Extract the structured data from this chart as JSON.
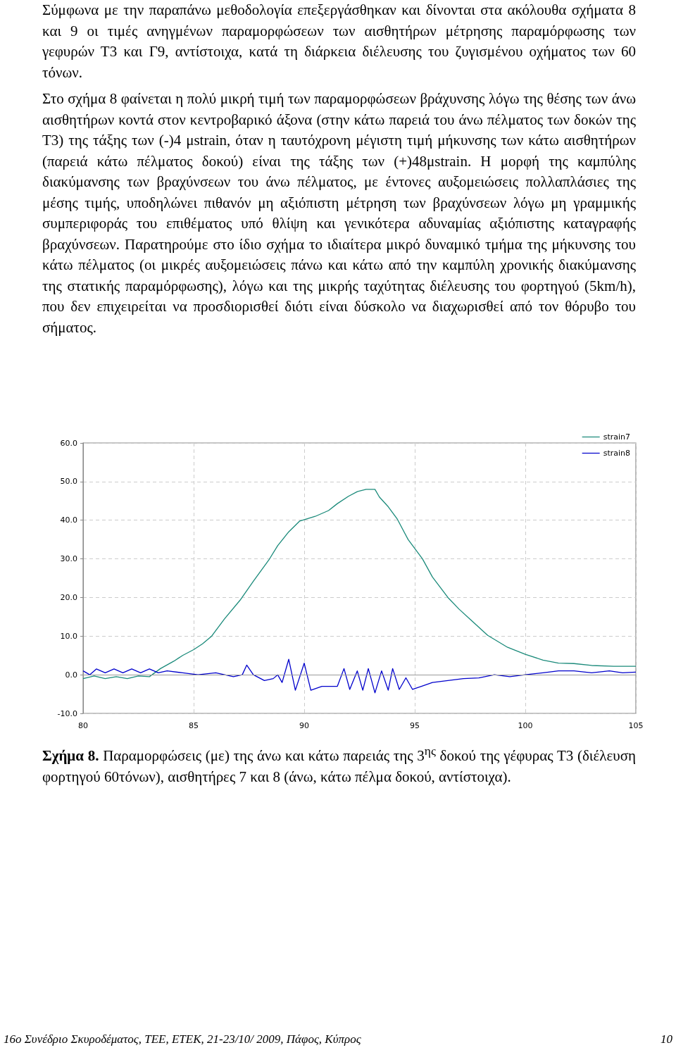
{
  "chart_data": {
    "type": "line",
    "annotations": [
      "Σύμφωνα με την παραπάνω μεθοδολογία επεξεργάσθηκαν και δίνονται στα ακόλουθα σχήματα 8 και 9 οι τιμές ανηγμένων παραμορφώσεων των αισθητήρων μέτρησης παραμόρφωσης των γεφυρών Τ3 και Γ9, αντίστοιχα, κατά τη διάρκεια διέλευσης του ζυγισμένου οχήματος των 60 τόνων.",
      "Στο σχήμα 8 φαίνεται η πολύ μικρή τιμή των παραμορφώσεων βράχυνσης λόγω της θέσης των άνω αισθητήρων κοντά στον κεντροβαρικό άξονα (στην κάτω παρειά του άνω πέλματος των δοκών της Τ3) της τάξης των (-)4 μstrain, όταν η ταυτόχρονη μέγιστη τιμή μήκυνσης των κάτω αισθητήρων (παρειά κάτω πέλματος δοκού) είναι της τάξης των (+)48μstrain. Η μορφή της καμπύλης διακύμανσης των βραχύνσεων του άνω πέλματος, με έντονες αυξομειώσεις πολλαπλάσιες της μέσης τιμής, υποδηλώνει πιθανόν μη αξιόπιστη μέτρηση των βραχύνσεων λόγω μη γραμμικής συμπεριφοράς του επιθέματος υπό θλίψη και γενικότερα αδυναμίας αξιόπιστης καταγραφής βραχύνσεων. Παρατηρούμε στο ίδιο σχήμα το ιδιαίτερα μικρό δυναμικό τμήμα της μήκυνσης του κάτω πέλματος (οι μικρές αυξομειώσεις πάνω και κάτω από την καμπύλη χρονικής διακύμανσης της στατικής παραμόρφωσης), λόγω και της μικρής ταχύτητας διέλευσης του φορτηγού (5km/h), που δεν επιχειρείται να προσδιορισθεί διότι είναι δύσκολο να διαχωρισθεί από τον θόρυβο του σήματος.",
      "Σχήμα 8.",
      "Παραμορφώσεις (με) της άνω και κάτω παρειάς της 3$^{ης}$ δοκού της γέφυρας Τ3 (διέλευση φορτηγού 60τόνων), αισθητήρες 7 και 8 (άνω, κάτω πέλμα δοκού, αντίστοιχα).",
      "16ο Συνέδριο Σκυροδέματος, ΤΕΕ, ΕΤΕΚ, 21-23/10/ 2009, Πάφος, Κύπρος",
      "10"
    ],
    "xlim": [
      80,
      105
    ],
    "xticks": [
      80,
      85,
      90,
      95,
      100,
      105
    ],
    "ylim": [
      -10,
      60
    ],
    "yticks": [
      {
        "value": -10,
        "label": "-10.0"
      },
      {
        "value": 0,
        "label": "0.0"
      },
      {
        "value": 10,
        "label": "10.0"
      },
      {
        "value": 20,
        "label": "20.0"
      },
      {
        "value": 30,
        "label": "30.0"
      },
      {
        "value": 40,
        "label": "40.0"
      },
      {
        "value": 50,
        "label": "50.0"
      },
      {
        "value": 60,
        "label": "60.0"
      }
    ],
    "grid": true,
    "legend": "top right",
    "marker": "none",
    "line_style": "solid",
    "ref_lines": [
      {
        "axis": "y",
        "value": 0,
        "color": "#999999"
      }
    ],
    "series": [
      {
        "name": "strain7",
        "color": "#1a8a7a",
        "x": [
          80,
          80.5,
          81,
          81.5,
          82,
          82.5,
          83,
          83.5,
          84.1,
          84.5,
          85,
          85.4,
          85.8,
          86.4,
          87.1,
          87.7,
          88.4,
          88.8,
          89.3,
          89.8,
          90.5,
          91.1,
          91.5,
          92,
          92.4,
          92.8,
          93.2,
          93.4,
          93.8,
          94.2,
          94.7,
          95.35,
          95.8,
          96.5,
          97,
          97.5,
          98.3,
          99.2,
          100,
          100.8,
          101.5,
          102.2,
          103,
          104,
          105
        ],
        "values": [
          -1,
          -0.3,
          -1,
          -0.5,
          -1,
          -0.3,
          -0.5,
          1.6,
          3.5,
          5,
          6.5,
          8,
          9.9,
          14.5,
          19.3,
          24.2,
          29.7,
          33.4,
          37,
          39.8,
          41,
          42.5,
          44.3,
          46.2,
          47.4,
          48,
          48,
          46,
          43.5,
          40.4,
          35,
          30,
          25.3,
          20,
          17,
          14.4,
          10.2,
          7.1,
          5.3,
          3.8,
          3,
          2.9,
          2.4,
          2.2,
          2.2
        ]
      },
      {
        "name": "strain8",
        "color": "#0000cc",
        "x": [
          80,
          80.3,
          80.6,
          81,
          81.4,
          81.8,
          82.2,
          82.6,
          83,
          83.4,
          83.8,
          84.5,
          85.2,
          86,
          86.8,
          87.2,
          87.4,
          87.7,
          88.2,
          88.6,
          88.8,
          89,
          89.3,
          89.6,
          90,
          90.3,
          90.8,
          91.5,
          91.8,
          92.06,
          92.4,
          92.65,
          92.9,
          93.2,
          93.5,
          93.8,
          94,
          94.3,
          94.6,
          94.9,
          95.3,
          95.8,
          96.5,
          97.2,
          97.9,
          98.6,
          99.3,
          100,
          100.8,
          101.5,
          102.2,
          103,
          103.8,
          104.4,
          105
        ],
        "values": [
          1,
          0,
          1.5,
          0.5,
          1.5,
          0.5,
          1.5,
          0.5,
          1.5,
          0.5,
          1,
          0.5,
          0,
          0.5,
          -0.5,
          0,
          2.5,
          0,
          -1.5,
          -1,
          0,
          -2,
          4,
          -4,
          3,
          -4,
          -3,
          -3,
          1.6,
          -3.8,
          1,
          -4,
          1.6,
          -4.7,
          1,
          -4,
          1.6,
          -3.8,
          -0.8,
          -3.8,
          -3,
          -2,
          -1.5,
          -1,
          -0.8,
          0,
          -0.5,
          0,
          0.5,
          1,
          1,
          0.5,
          1,
          0.5,
          0.7
        ]
      }
    ]
  }
}
